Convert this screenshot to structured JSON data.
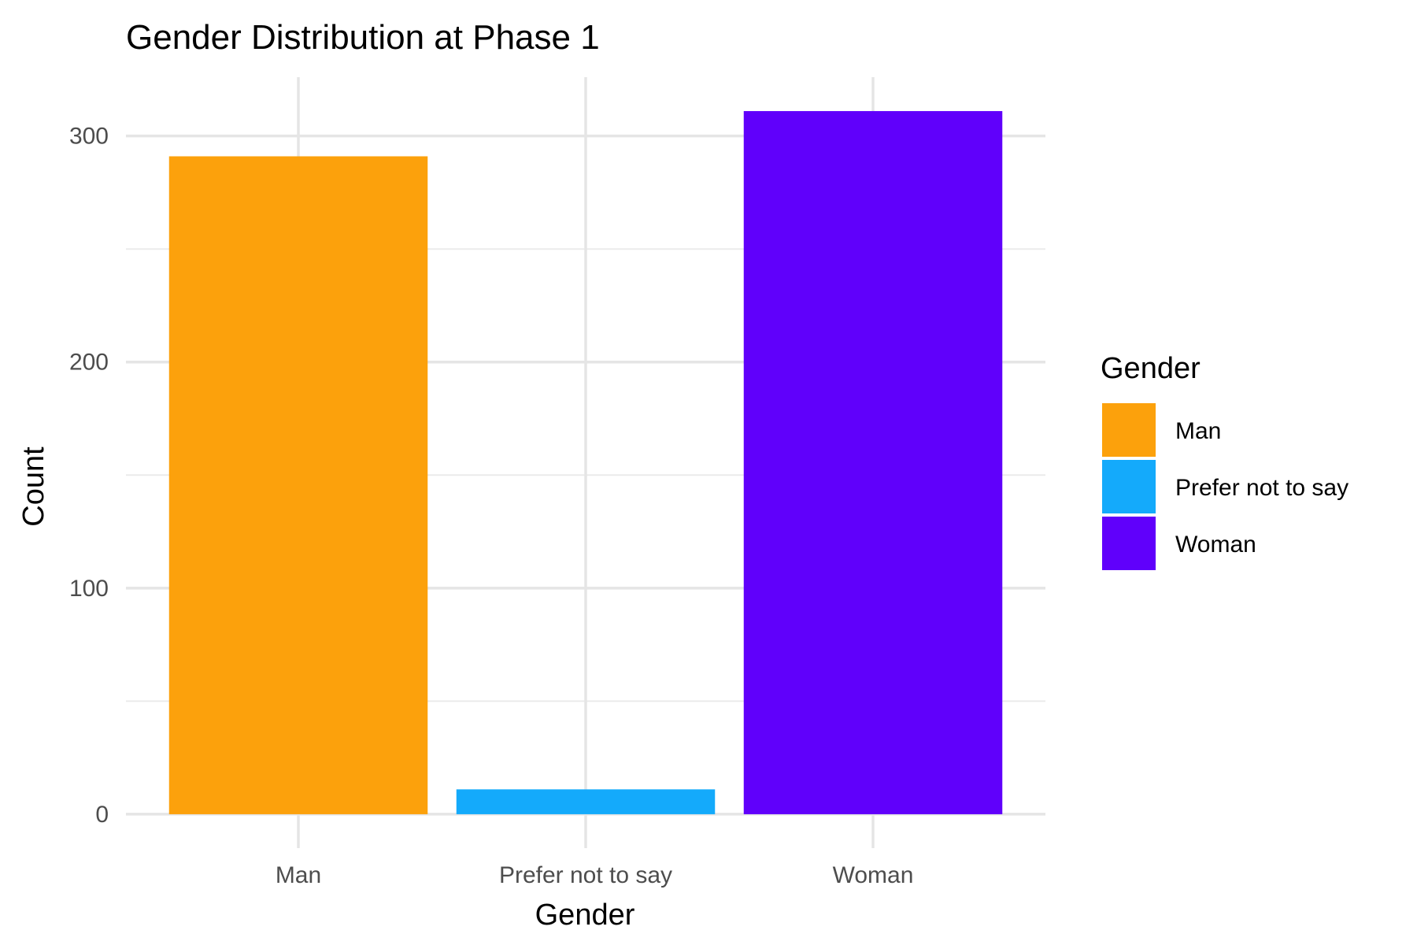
{
  "chart_data": {
    "type": "bar",
    "title": "Gender Distribution at Phase 1",
    "xlabel": "Gender",
    "ylabel": "Count",
    "categories": [
      "Man",
      "Prefer not to say",
      "Woman"
    ],
    "values": [
      291,
      11,
      311
    ],
    "colors": [
      "#FCA10C",
      "#14AAFB",
      "#6000FB"
    ],
    "ylim": [
      -15,
      326
    ],
    "yticks": [
      0,
      100,
      200,
      300
    ],
    "yticks_minor": [
      50,
      150,
      250
    ],
    "ytick_labels": [
      "0",
      "100",
      "200",
      "300"
    ],
    "grid": true,
    "legend": {
      "title": "Gender",
      "placement": "right",
      "entries": [
        "Man",
        "Prefer not to say",
        "Woman"
      ]
    }
  }
}
